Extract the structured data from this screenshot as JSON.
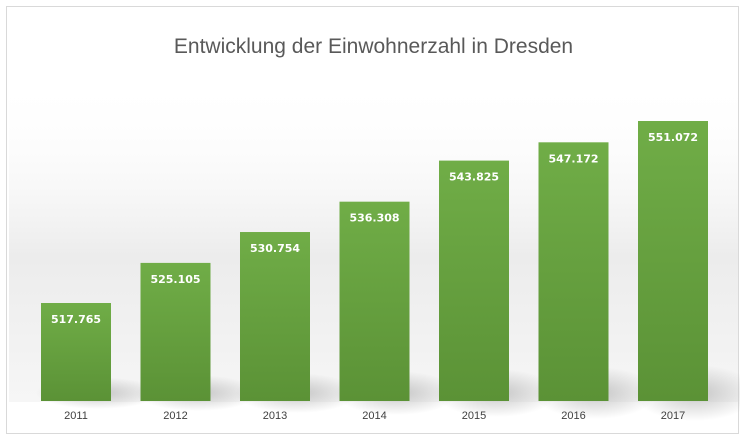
{
  "chart_data": {
    "type": "bar",
    "title": "Entwicklung der Einwohnerzahl in Dresden",
    "xlabel": "",
    "ylabel": "",
    "categories": [
      "2011",
      "2012",
      "2013",
      "2014",
      "2015",
      "2016",
      "2017"
    ],
    "values": [
      517765,
      525105,
      530754,
      536308,
      543825,
      547172,
      551072
    ],
    "data_labels": [
      "517.765",
      "525.105",
      "530.754",
      "536.308",
      "543.825",
      "547.172",
      "551.072"
    ],
    "grid": false,
    "legend": "none",
    "colors": {
      "bar_top": "#70ad47",
      "bar_bottom": "#5b9236",
      "label_text": "#ffffff",
      "title_text": "#595959"
    }
  }
}
